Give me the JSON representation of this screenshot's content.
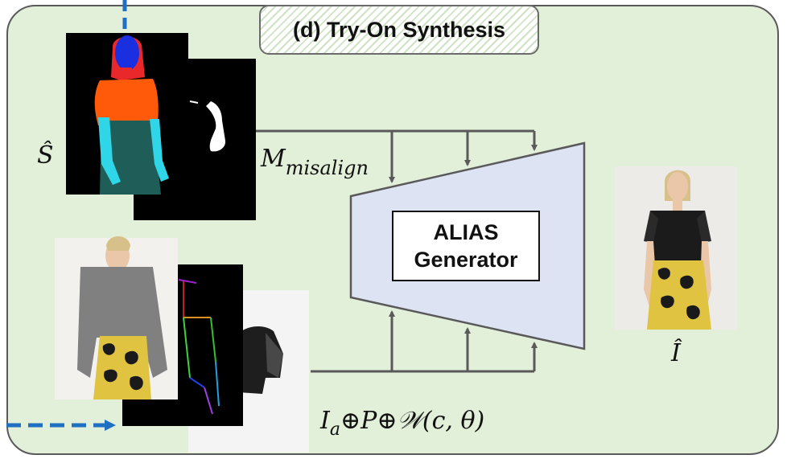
{
  "title": "(d) Try-On Synthesis",
  "generator": {
    "line1": "ALIAS",
    "line2": "Generator"
  },
  "labels": {
    "s_hat": "Ŝ",
    "i_hat": "Î",
    "m_base": "M",
    "m_sub": "misalign",
    "input_ia": "I",
    "input_sub": "a",
    "input_rest_oplus1": "⊕",
    "input_p": "P",
    "input_rest_oplus2": "⊕",
    "input_w": "𝒲",
    "input_args": "(c, θ)"
  },
  "colors": {
    "panel_bg": "#e2efd9",
    "generator_fill": "#dde3f3",
    "arrow": "#595959",
    "dashed_arrow": "#1f6fc2",
    "seg_hair": "#e8282a",
    "seg_face": "#1a2fe0",
    "seg_top": "#ff5a0a",
    "seg_arm": "#2fd6e8",
    "seg_skirt": "#1f5e58"
  }
}
